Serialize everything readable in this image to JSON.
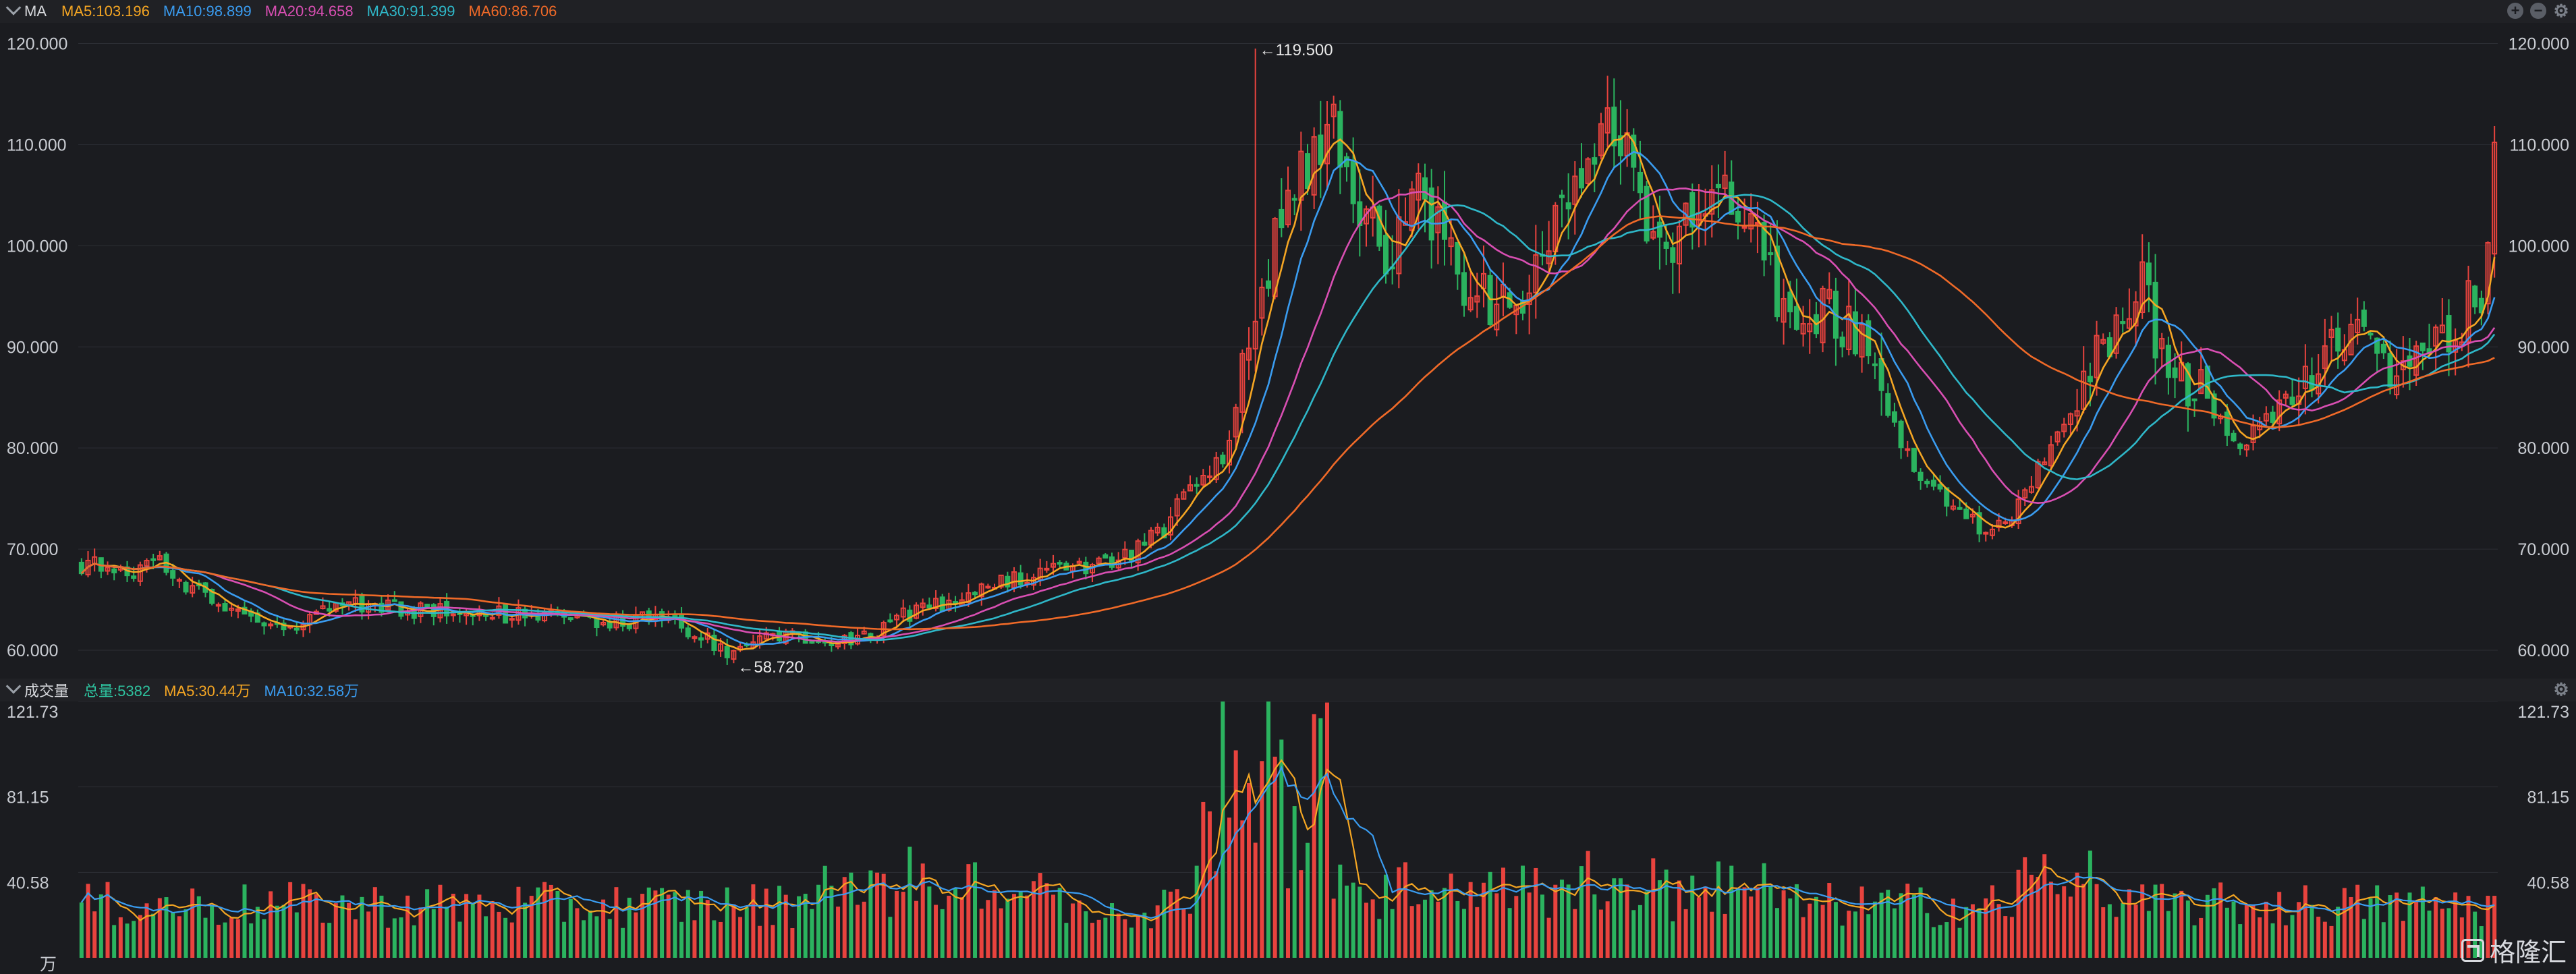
{
  "kline_legend": {
    "title": "MA",
    "items": [
      {
        "text": "MA5:103.196",
        "color": "#f5a623"
      },
      {
        "text": "MA10:98.899",
        "color": "#3a9cf0"
      },
      {
        "text": "MA20:94.658",
        "color": "#d94fb3"
      },
      {
        "text": "MA30:91.399",
        "color": "#2fb8c9"
      },
      {
        "text": "MA60:86.706",
        "color": "#f06a28"
      }
    ]
  },
  "volume_legend": {
    "title": "成交量",
    "items": [
      {
        "text": "总量:5382",
        "color": "#2ec4a0"
      },
      {
        "text": "MA5:30.44万",
        "color": "#f5a623"
      },
      {
        "text": "MA10:32.58万",
        "color": "#3a9cf0"
      }
    ]
  },
  "watermark": "格隆汇",
  "colors": {
    "up": "#e8433e",
    "down": "#2bb35f",
    "grid": "#2c2e34"
  },
  "chart_data": [
    {
      "type": "candlestick",
      "ylim": [
        58,
        121.5
      ],
      "y_ticks": [
        "120.000",
        "110.000",
        "100.000",
        "90.000",
        "80.000",
        "70.000",
        "60.000"
      ],
      "y_tick_values": [
        120,
        110,
        100,
        90,
        80,
        70,
        60
      ],
      "annotations": [
        {
          "text": "←119.500",
          "value": 119.5
        },
        {
          "text": "←58.720",
          "value": 58.72
        }
      ],
      "anchors": [
        [
          0,
          68.5
        ],
        [
          8,
          68
        ],
        [
          12,
          69
        ],
        [
          16,
          66
        ],
        [
          20,
          65.5
        ],
        [
          26,
          63
        ],
        [
          32,
          62.5
        ],
        [
          40,
          64.5
        ],
        [
          50,
          64
        ],
        [
          60,
          63.8
        ],
        [
          70,
          63.2
        ],
        [
          80,
          62.8
        ],
        [
          90,
          63.2
        ],
        [
          94,
          61.8
        ],
        [
          100,
          59.5
        ],
        [
          105,
          61
        ],
        [
          112,
          61.5
        ],
        [
          118,
          60.5
        ],
        [
          122,
          61.8
        ],
        [
          126,
          63.5
        ],
        [
          132,
          64.5
        ],
        [
          138,
          66
        ],
        [
          145,
          67.5
        ],
        [
          150,
          68
        ],
        [
          158,
          68.5
        ],
        [
          162,
          70
        ],
        [
          166,
          72
        ],
        [
          170,
          76
        ],
        [
          176,
          80
        ],
        [
          180,
          95
        ],
        [
          184,
          102
        ],
        [
          188,
          108
        ],
        [
          192,
          112
        ],
        [
          196,
          104
        ],
        [
          200,
          98
        ],
        [
          204,
          107
        ],
        [
          208,
          102
        ],
        [
          212,
          96
        ],
        [
          216,
          94
        ],
        [
          220,
          93
        ],
        [
          224,
          100
        ],
        [
          228,
          106
        ],
        [
          232,
          111
        ],
        [
          236,
          112
        ],
        [
          240,
          103
        ],
        [
          244,
          101
        ],
        [
          248,
          104
        ],
        [
          252,
          106
        ],
        [
          256,
          101
        ],
        [
          260,
          95
        ],
        [
          264,
          92
        ],
        [
          268,
          94
        ],
        [
          272,
          91
        ],
        [
          276,
          86
        ],
        [
          280,
          79
        ],
        [
          284,
          76
        ],
        [
          288,
          74
        ],
        [
          292,
          71.5
        ],
        [
          296,
          73
        ],
        [
          300,
          78
        ],
        [
          304,
          83
        ],
        [
          308,
          88
        ],
        [
          312,
          92
        ],
        [
          316,
          99
        ],
        [
          318,
          90
        ],
        [
          322,
          87
        ],
        [
          326,
          85
        ],
        [
          330,
          80
        ],
        [
          334,
          82
        ],
        [
          338,
          85
        ],
        [
          342,
          88
        ],
        [
          346,
          90
        ],
        [
          350,
          92.5
        ],
        [
          352,
          88
        ],
        [
          356,
          87
        ],
        [
          360,
          89
        ],
        [
          364,
          92
        ],
        [
          368,
          96
        ],
        [
          370,
          109
        ]
      ],
      "ma_series": [
        {
          "name": "MA5",
          "period": 5,
          "color": "#f5a623"
        },
        {
          "name": "MA10",
          "period": 10,
          "color": "#3a9cf0"
        },
        {
          "name": "MA20",
          "period": 20,
          "color": "#d94fb3"
        },
        {
          "name": "MA30",
          "period": 30,
          "color": "#2fb8c9"
        },
        {
          "name": "MA60",
          "period": 60,
          "color": "#f06a28"
        }
      ]
    },
    {
      "type": "bar",
      "ylim": [
        0,
        121.73
      ],
      "y_ticks": [
        "121.73",
        "81.15",
        "40.58"
      ],
      "y_tick_values": [
        121.73,
        81.15,
        40.58
      ],
      "unit": "万",
      "ma_series": [
        {
          "name": "MA5",
          "period": 5,
          "color": "#f5a623"
        },
        {
          "name": "MA10",
          "period": 10,
          "color": "#3a9cf0"
        }
      ]
    }
  ]
}
